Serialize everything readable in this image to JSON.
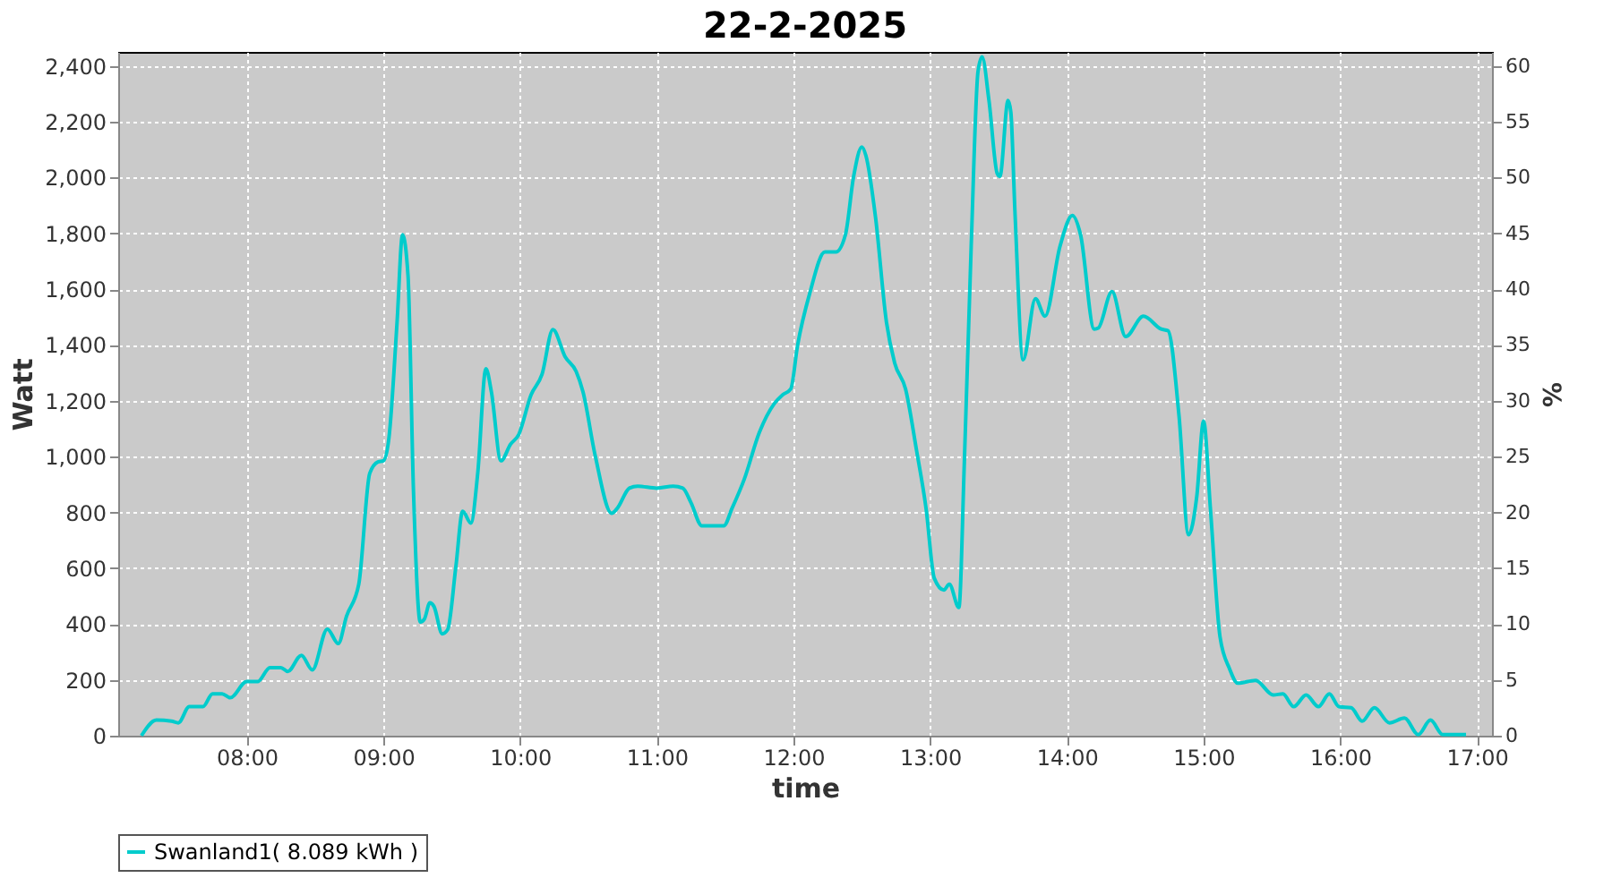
{
  "chart_data": {
    "type": "line",
    "title": "22-2-2025",
    "xlabel": "time",
    "ylabel": "Watt",
    "y2label": "%",
    "xlim": [
      7.06,
      17.11
    ],
    "xticks": [
      {
        "value": 8,
        "label": "08:00"
      },
      {
        "value": 9,
        "label": "09:00"
      },
      {
        "value": 10,
        "label": "10:00"
      },
      {
        "value": 11,
        "label": "11:00"
      },
      {
        "value": 12,
        "label": "12:00"
      },
      {
        "value": 13,
        "label": "13:00"
      },
      {
        "value": 14,
        "label": "14:00"
      },
      {
        "value": 15,
        "label": "15:00"
      },
      {
        "value": 16,
        "label": "16:00"
      },
      {
        "value": 17,
        "label": "17:00"
      }
    ],
    "ylim": [
      0,
      2450
    ],
    "yticks": [
      0,
      200,
      400,
      600,
      800,
      {
        "value": 1000,
        "label": "1,000"
      },
      {
        "value": 1200,
        "label": "1,200"
      },
      {
        "value": 1400,
        "label": "1,400"
      },
      {
        "value": 1600,
        "label": "1,600"
      },
      {
        "value": 1800,
        "label": "1,800"
      },
      {
        "value": 2000,
        "label": "2,000"
      },
      {
        "value": 2200,
        "label": "2,200"
      },
      {
        "value": 2400,
        "label": "2,400"
      }
    ],
    "y2lim": [
      0,
      61.25
    ],
    "y2ticks": [
      0,
      5,
      10,
      15,
      20,
      25,
      30,
      35,
      40,
      45,
      50,
      55,
      60
    ],
    "grid": true,
    "legend": "bottom",
    "series": [
      {
        "name": "Swanland1( 8.089 kWh )",
        "color": "#00cccc",
        "x": [
          7.23,
          7.34,
          7.45,
          7.5,
          7.58,
          7.68,
          7.75,
          7.82,
          7.88,
          8.0,
          8.08,
          8.17,
          8.25,
          8.3,
          8.4,
          8.48,
          8.59,
          8.67,
          8.73,
          8.82,
          8.9,
          8.96,
          9.0,
          9.04,
          9.1,
          9.14,
          9.18,
          9.22,
          9.27,
          9.3,
          9.34,
          9.37,
          9.43,
          9.47,
          9.53,
          9.58,
          9.64,
          9.69,
          9.75,
          9.79,
          9.86,
          9.93,
          9.99,
          10.08,
          10.16,
          10.24,
          10.33,
          10.41,
          10.46,
          10.55,
          10.67,
          10.71,
          10.8,
          10.86,
          11.0,
          11.12,
          11.19,
          11.25,
          11.33,
          11.43,
          11.49,
          11.55,
          11.64,
          11.75,
          11.86,
          11.92,
          11.98,
          12.03,
          12.12,
          12.23,
          12.31,
          12.38,
          12.44,
          12.5,
          12.53,
          12.6,
          12.68,
          12.74,
          12.82,
          12.9,
          12.97,
          13.03,
          13.1,
          13.14,
          13.21,
          13.25,
          13.3,
          13.35,
          13.38,
          13.43,
          13.49,
          13.51,
          13.57,
          13.59,
          13.62,
          13.68,
          13.77,
          13.84,
          13.95,
          14.04,
          14.1,
          14.2,
          14.23,
          14.33,
          14.43,
          14.56,
          14.69,
          14.74,
          14.82,
          14.89,
          14.95,
          15.0,
          15.05,
          15.12,
          15.19,
          15.25,
          15.38,
          15.51,
          15.58,
          15.66,
          15.75,
          15.84,
          15.92,
          15.99,
          16.08,
          16.16,
          16.25,
          16.36,
          16.47,
          16.57,
          16.66,
          16.75,
          16.81,
          16.92
        ],
        "values": [
          0,
          56,
          52,
          46,
          104,
          104,
          150,
          150,
          136,
          194,
          194,
          244,
          244,
          230,
          288,
          236,
          382,
          330,
          428,
          543,
          940,
          981,
          985,
          1065,
          1482,
          1795,
          1649,
          877,
          407,
          418,
          476,
          463,
          365,
          380,
          605,
          804,
          762,
          940,
          1315,
          1232,
          985,
          1044,
          1079,
          1221,
          1294,
          1455,
          1357,
          1305,
          1232,
          1002,
          797,
          814,
          887,
          894,
          887,
          894,
          887,
          835,
          752,
          752,
          752,
          814,
          919,
          1086,
          1190,
          1221,
          1242,
          1399,
          1587,
          1733,
          1733,
          1795,
          2004,
          2109,
          2078,
          1858,
          1482,
          1336,
          1242,
          1023,
          814,
          564,
          522,
          543,
          459,
          981,
          1754,
          2380,
          2432,
          2276,
          2015,
          2004,
          2276,
          2234,
          1879,
          1347,
          1566,
          1503,
          1754,
          1864,
          1795,
          1457,
          1461,
          1591,
          1430,
          1503,
          1457,
          1451,
          1148,
          720,
          856,
          1127,
          814,
          355,
          240,
          188,
          198,
          146,
          150,
          104,
          146,
          104,
          150,
          104,
          100,
          52,
          100,
          46,
          63,
          4,
          56,
          4,
          4,
          4
        ]
      }
    ]
  }
}
